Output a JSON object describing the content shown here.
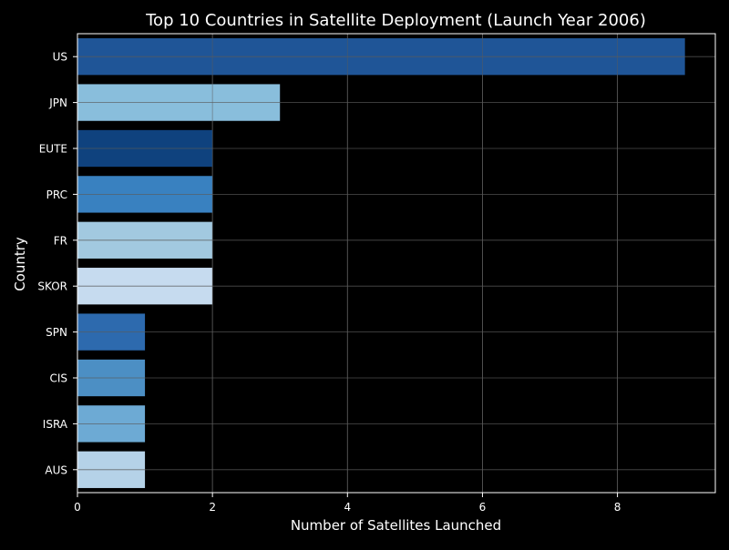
{
  "chart_data": {
    "type": "bar",
    "orientation": "horizontal",
    "title": "Top 10 Countries in Satellite Deployment (Launch Year 2006)",
    "xlabel": "Number of Satellites Launched",
    "ylabel": "Country",
    "xlim": [
      0,
      9.45
    ],
    "xticks": [
      0,
      2,
      4,
      6,
      8
    ],
    "grid": true,
    "categories": [
      "US",
      "JPN",
      "EUTE",
      "PRC",
      "FR",
      "SKOR",
      "SPN",
      "CIS",
      "ISRA",
      "AUS"
    ],
    "values": [
      9,
      3,
      2,
      2,
      2,
      2,
      1,
      1,
      1,
      1
    ],
    "colors": [
      "#1f5597",
      "#89bedc",
      "#0f427e",
      "#3981c0",
      "#a2c9e0",
      "#c6dbef",
      "#2d6aae",
      "#4c8fc4",
      "#6daad4",
      "#b5d2e8"
    ]
  },
  "theme": {
    "background": "#000000",
    "text": "#ffffff",
    "grid": "#5a5a5a"
  }
}
